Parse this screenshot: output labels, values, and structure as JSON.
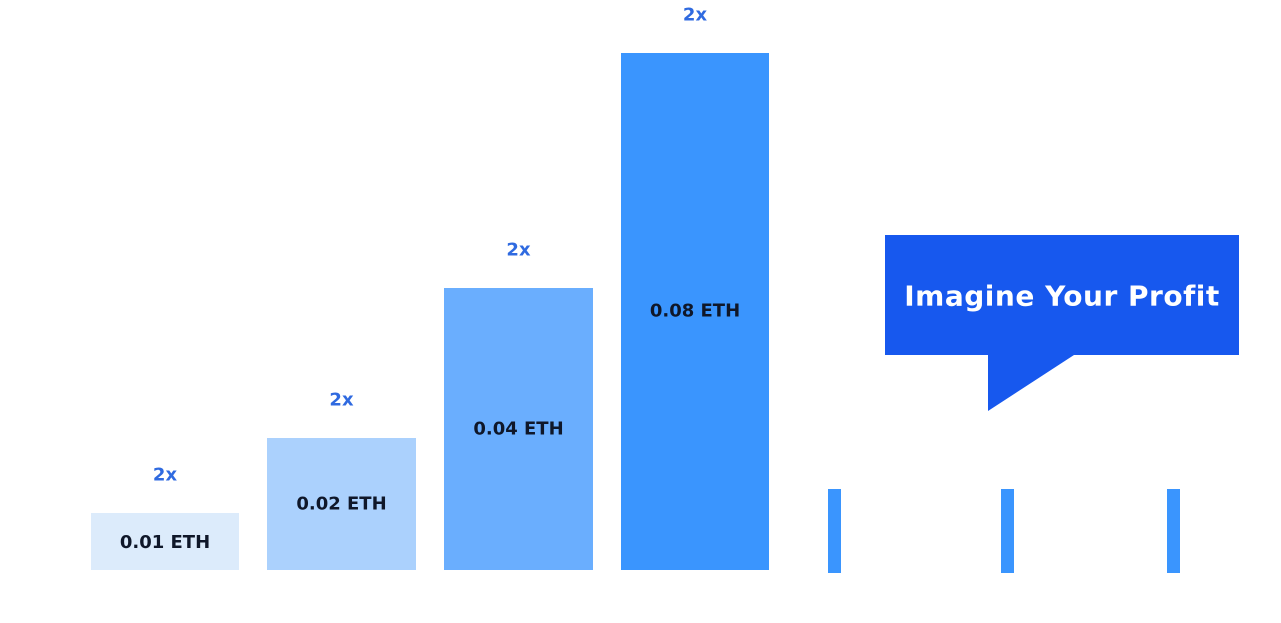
{
  "chart_data": {
    "type": "bar",
    "categories": [
      "0.01 ETH",
      "0.02 ETH",
      "0.04 ETH",
      "0.08 ETH"
    ],
    "values": [
      0.01,
      0.02,
      0.04,
      0.08
    ],
    "value_labels": [
      "0.01 ETH",
      "0.02 ETH",
      "0.04 ETH",
      "0.08 ETH"
    ],
    "multiplier_labels": [
      "2x",
      "2x",
      "2x",
      "2x"
    ],
    "ylim": [
      0,
      0.08
    ],
    "grid": false,
    "bar_colors": [
      "#dcebfb",
      "#abd1fd",
      "#6aaefe",
      "#3a95fe"
    ],
    "continuation_marks": 3,
    "continuation_color": "#3a95fe",
    "multiplier_color": "#2f6ae0"
  },
  "callout": {
    "text": "Imagine Your Profit",
    "color": "#1758ee"
  }
}
